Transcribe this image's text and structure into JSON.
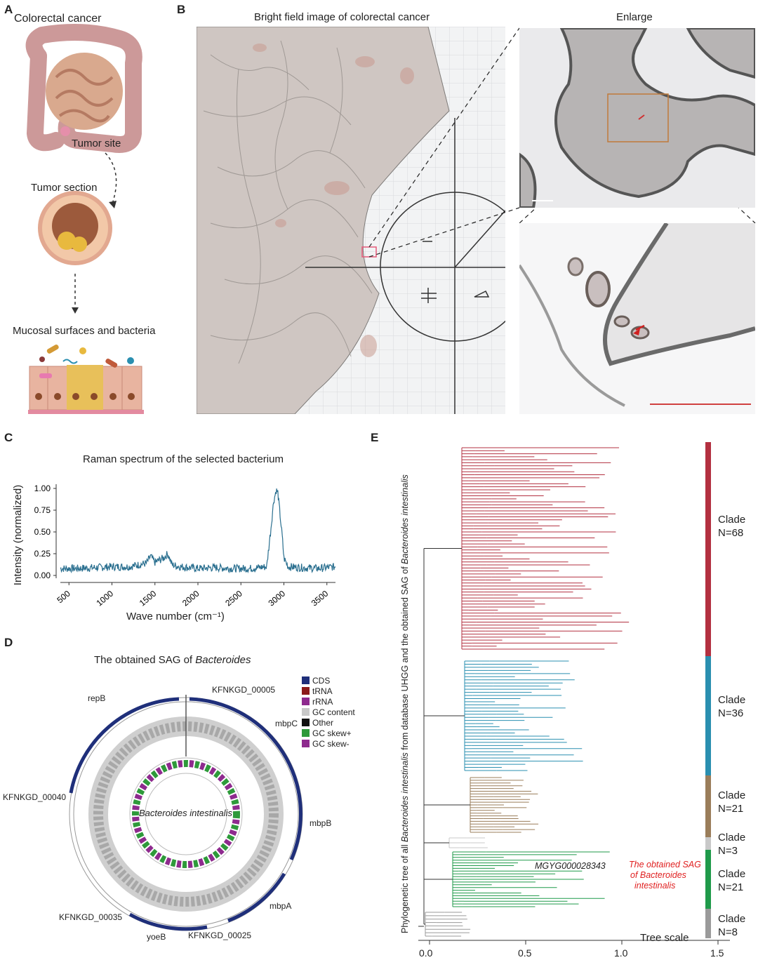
{
  "panels": {
    "a": {
      "label": "A",
      "title": "Colorectal cancer",
      "tumor_site": "Tumor site",
      "tumor_section": "Tumor section",
      "mucosal": "Mucosal surfaces and bacteria"
    },
    "b": {
      "label": "B",
      "title": "Bright field image of colorectal cancer",
      "enlarge": "Enlarge"
    },
    "c": {
      "label": "C",
      "title": "Raman spectrum of the selected bacterium",
      "ylabel": "Intensity (normalized)",
      "xlabel": "Wave number (cm⁻¹)"
    },
    "d": {
      "label": "D",
      "title_prefix": "The obtained SAG of ",
      "title_italic": "Bacteroides",
      "center_label": "Bacteroides intestinalis",
      "genes": [
        "KFNKGD_00005",
        "mbpC",
        "mbpB",
        "mbpA",
        "KFNKGD_00025",
        "yoeB",
        "KFNKGD_00035",
        "KFNKGD_00040",
        "repB"
      ],
      "legend": [
        {
          "label": "CDS",
          "color": "#1f2f7a"
        },
        {
          "label": "tRNA",
          "color": "#8b1a1a"
        },
        {
          "label": "rRNA",
          "color": "#8e2a8e"
        },
        {
          "label": "GC content",
          "color": "#c8c8c8"
        },
        {
          "label": "Other",
          "color": "#111111"
        },
        {
          "label": "GC skew+",
          "color": "#2e9a3a"
        },
        {
          "label": "GC skew-",
          "color": "#8e2a8e"
        }
      ]
    },
    "e": {
      "label": "E",
      "ylabel_a": "Phylogenetic tree of all ",
      "ylabel_b": "Bacteroides intestinalis",
      "ylabel_c": " from database UHGG and  the obtained SAG of ",
      "ylabel_d": "Bacteroides intestinalis",
      "mgyg": "MGYG000028343",
      "obtained_1": "The obtained SAG",
      "obtained_2": "of Bacteroides",
      "obtained_3": "intestinalis",
      "tree_scale": "Tree scale",
      "clades": [
        {
          "name": "Clade",
          "n": "N=68",
          "color": "#b33040"
        },
        {
          "name": "Clade",
          "n": "N=36",
          "color": "#2a8fb0"
        },
        {
          "name": "Clade",
          "n": "N=21",
          "color": "#9a7d5a"
        },
        {
          "name": "Clade",
          "n": "N=3",
          "color": "#c8c8c8"
        },
        {
          "name": "Clade",
          "n": "N=21",
          "color": "#1f9a4a"
        },
        {
          "name": "Clade",
          "n": "N=8",
          "color": "#9a9a9a"
        }
      ],
      "x_ticks": [
        "0.0",
        "0.5",
        "1.0",
        "1.5"
      ]
    }
  },
  "chart_data": {
    "type": "line",
    "title": "Raman spectrum of the selected bacterium",
    "xlabel": "Wave number (cm⁻¹)",
    "ylabel": "Intensity (normalized)",
    "xlim": [
      400,
      3600
    ],
    "ylim": [
      0,
      1.0
    ],
    "x_ticks": [
      500,
      1000,
      1500,
      2000,
      2500,
      3000,
      3500
    ],
    "y_ticks": [
      "0.00",
      "0.25",
      "0.50",
      "0.75",
      "1.00"
    ],
    "series": [
      {
        "name": "spectrum",
        "color": "#2a6f8f",
        "x": [
          400,
          600,
          800,
          1000,
          1200,
          1400,
          1450,
          1500,
          1600,
          1650,
          1700,
          1800,
          2000,
          2200,
          2400,
          2600,
          2800,
          2850,
          2880,
          2910,
          2930,
          2950,
          2980,
          3000,
          3050,
          3200,
          3400,
          3600
        ],
        "y": [
          0.08,
          0.08,
          0.09,
          0.1,
          0.1,
          0.14,
          0.22,
          0.15,
          0.2,
          0.25,
          0.12,
          0.1,
          0.08,
          0.09,
          0.08,
          0.08,
          0.1,
          0.55,
          0.85,
          0.98,
          0.95,
          0.75,
          0.45,
          0.2,
          0.1,
          0.09,
          0.08,
          0.1
        ]
      }
    ]
  }
}
